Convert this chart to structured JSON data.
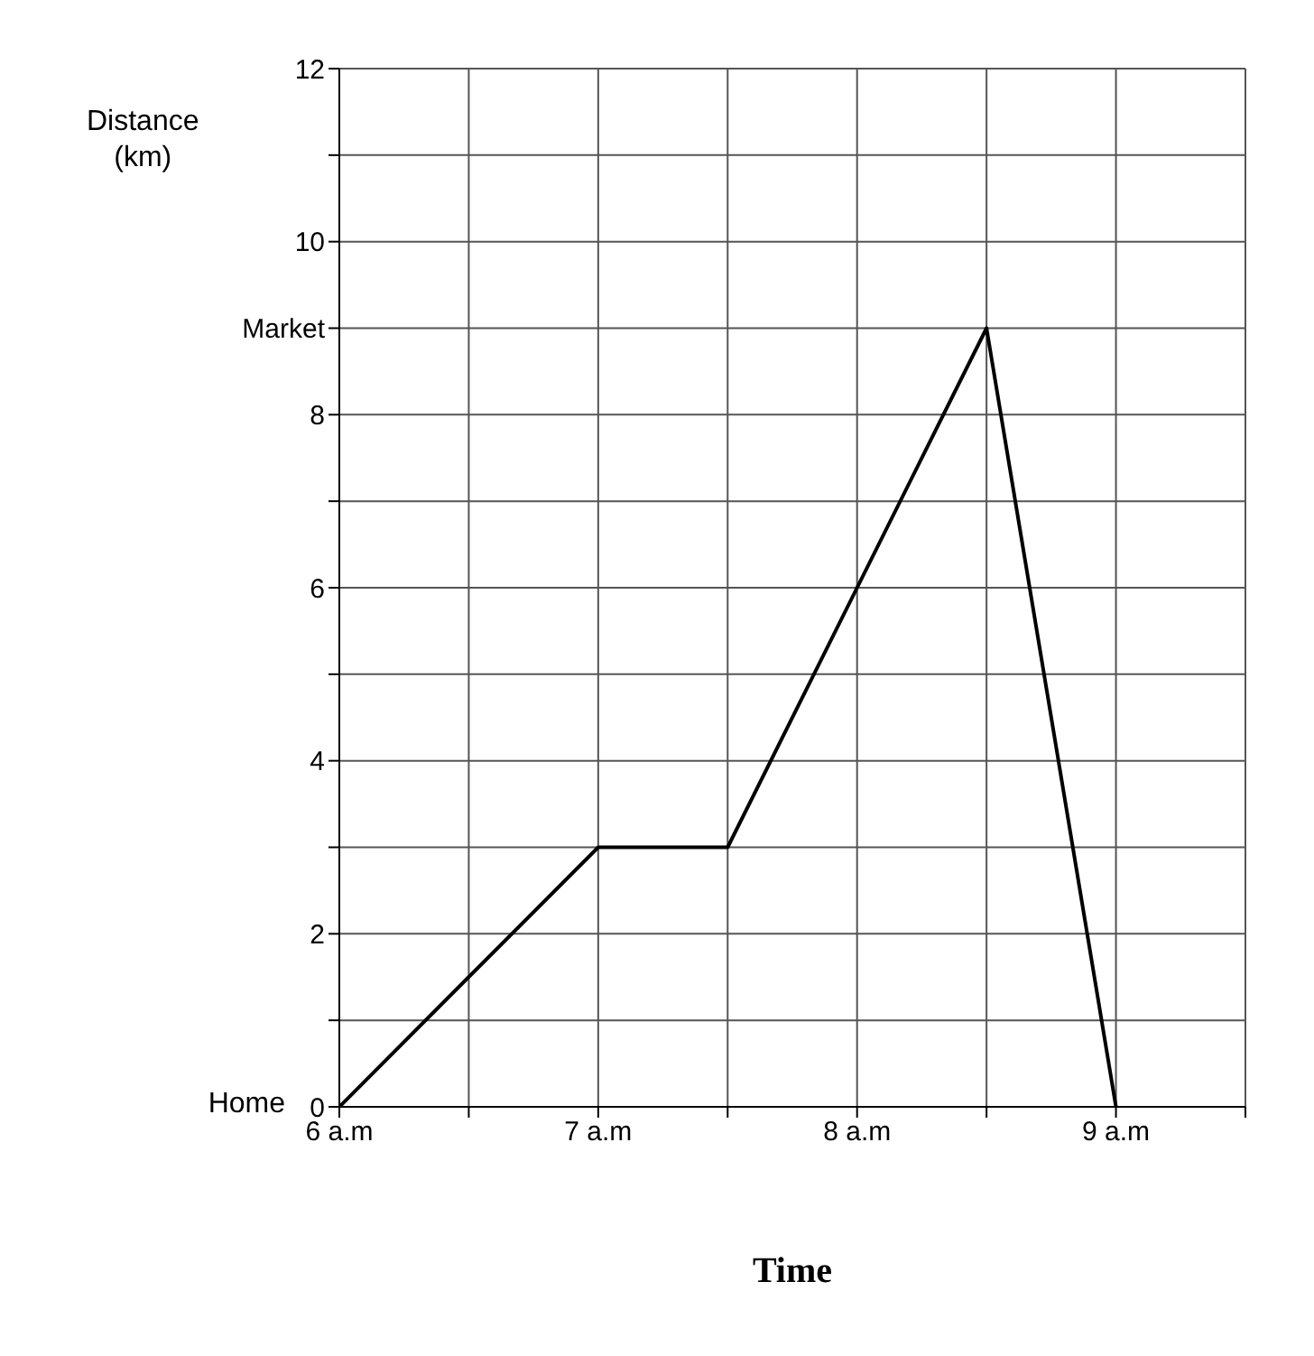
{
  "chart_data": {
    "type": "line",
    "xlabel": "Time",
    "ylabel": "Distance (km)",
    "x": [
      6,
      7,
      7.5,
      8.5,
      9
    ],
    "series": [
      {
        "color": "#000000",
        "values": [
          0,
          3,
          3,
          9,
          0
        ]
      }
    ],
    "xlim": [
      6,
      9.5
    ],
    "xticks": [
      {
        "value": 6,
        "label": "6 a.m"
      },
      {
        "value": 6.5,
        "label": null
      },
      {
        "value": 7,
        "label": "7 a.m"
      },
      {
        "value": 7.5,
        "label": null
      },
      {
        "value": 8,
        "label": "8 a.m"
      },
      {
        "value": 8.5,
        "label": null
      },
      {
        "value": 9,
        "label": "9 a.m"
      },
      {
        "value": 9.5,
        "label": null
      }
    ],
    "ylim": [
      0,
      12
    ],
    "yticks": [
      0,
      {
        "value": 1,
        "label": null
      },
      2,
      {
        "value": 3,
        "label": null
      },
      4,
      {
        "value": 5,
        "label": null
      },
      6,
      {
        "value": 7,
        "label": null
      },
      8,
      {
        "value": 9,
        "label": "Market"
      },
      10,
      {
        "value": 11,
        "label": null
      },
      12
    ],
    "annotations": [
      {
        "text": "Home",
        "x": 6,
        "y": 0
      }
    ],
    "grid": true,
    "marker": "none",
    "line_style": "solid",
    "legend": false
  }
}
